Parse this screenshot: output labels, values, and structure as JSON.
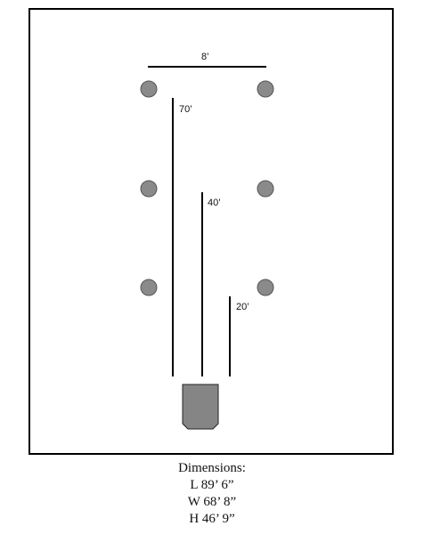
{
  "diagram": {
    "top_width_label": "8’",
    "line_labels": [
      "70’",
      "40’",
      "20’"
    ]
  },
  "caption": {
    "heading": "Dimensions:",
    "length": "L 89’ 6”",
    "width": "W 68’ 8”",
    "height": "H 46’ 9”"
  },
  "colors": {
    "marker_fill": "#8a8a8a",
    "home_base_fill": "#858585",
    "line": "#000000"
  },
  "icons": {
    "marker": "circle-marker-icon",
    "home_base": "home-base-icon"
  }
}
